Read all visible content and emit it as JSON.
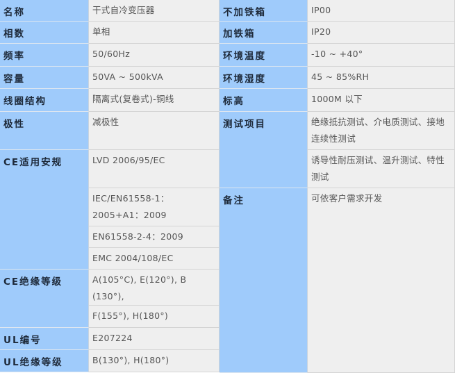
{
  "colors": {
    "label_bg": "#9fcbfb",
    "value_bg": "#efefef"
  },
  "left": [
    {
      "label": "名称",
      "values": [
        "干式自冷变压器"
      ]
    },
    {
      "label": "相数",
      "values": [
        "单相"
      ]
    },
    {
      "label": "频率",
      "values": [
        "50/60Hz"
      ]
    },
    {
      "label": "容量",
      "values": [
        "50VA ~ 500kVA"
      ]
    },
    {
      "label": "线圈结构",
      "values": [
        "隔离式(复卷式)-铜线"
      ]
    },
    {
      "label": "极性",
      "values": [
        "减极性"
      ]
    },
    {
      "label": "CE适用安规",
      "values": [
        "LVD 2006/95/EC",
        "IEC/EN61558-1：2005+A1：2009",
        "EN61558-2-4：2009",
        "EMC 2004/108/EC"
      ]
    },
    {
      "label": "CE绝缘等级",
      "values": [
        "A(105°C), E(120°), B (130°),",
        "F(155°), H(180°)"
      ]
    },
    {
      "label": "UL编号",
      "values": [
        "E207224"
      ]
    },
    {
      "label": "UL绝缘等级",
      "values": [
        "B(130°), H(180°)"
      ]
    }
  ],
  "right": [
    {
      "label": "不加铁箱",
      "values": [
        "IP00"
      ]
    },
    {
      "label": "加铁箱",
      "values": [
        "IP20"
      ]
    },
    {
      "label": "环境温度",
      "values": [
        "-10 ~ +40°"
      ]
    },
    {
      "label": "环境湿度",
      "values": [
        "45 ~ 85%RH"
      ]
    },
    {
      "label": "标高",
      "values": [
        "1000M 以下"
      ]
    },
    {
      "label": "测试项目",
      "values": [
        "绝缘抵抗测试、介电质测试、接地连续性测试",
        "诱导性耐压测试、温升测试、特性测试"
      ]
    },
    {
      "label": "备注",
      "values": [
        "可依客户需求开发"
      ]
    }
  ]
}
